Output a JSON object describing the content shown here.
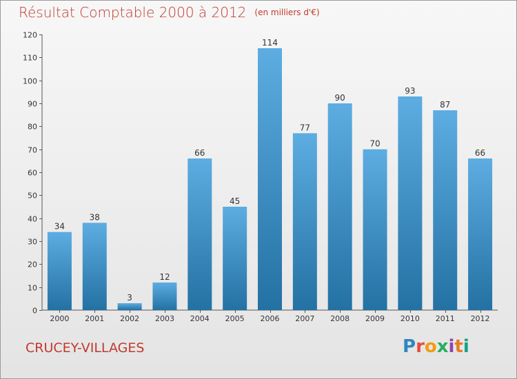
{
  "title": "Résultat Comptable 2000 à 2012",
  "subtitle": "(en milliers d'€)",
  "town": "CRUCEY-VILLAGES",
  "logo": {
    "letters": [
      "P",
      "r",
      "o",
      "x",
      "i",
      "t",
      "i"
    ],
    "colors": [
      "#2e86c1",
      "#e74c3c",
      "#f39c12",
      "#27ae60",
      "#8e44ad",
      "#e67e22",
      "#16a085"
    ]
  },
  "colors": {
    "bar_top": "#5dade2",
    "bar_bottom": "#2471a3",
    "text_accent": "#c0392b"
  },
  "chart_data": {
    "type": "bar",
    "categories": [
      "2000",
      "2001",
      "2002",
      "2003",
      "2004",
      "2005",
      "2006",
      "2007",
      "2008",
      "2009",
      "2010",
      "2011",
      "2012"
    ],
    "values": [
      34,
      38,
      3,
      12,
      66,
      45,
      114,
      77,
      90,
      70,
      93,
      87,
      66
    ],
    "ylim": [
      0,
      120
    ],
    "yticks": [
      0,
      10,
      20,
      30,
      40,
      50,
      60,
      70,
      80,
      90,
      100,
      110,
      120
    ],
    "grid": false
  }
}
